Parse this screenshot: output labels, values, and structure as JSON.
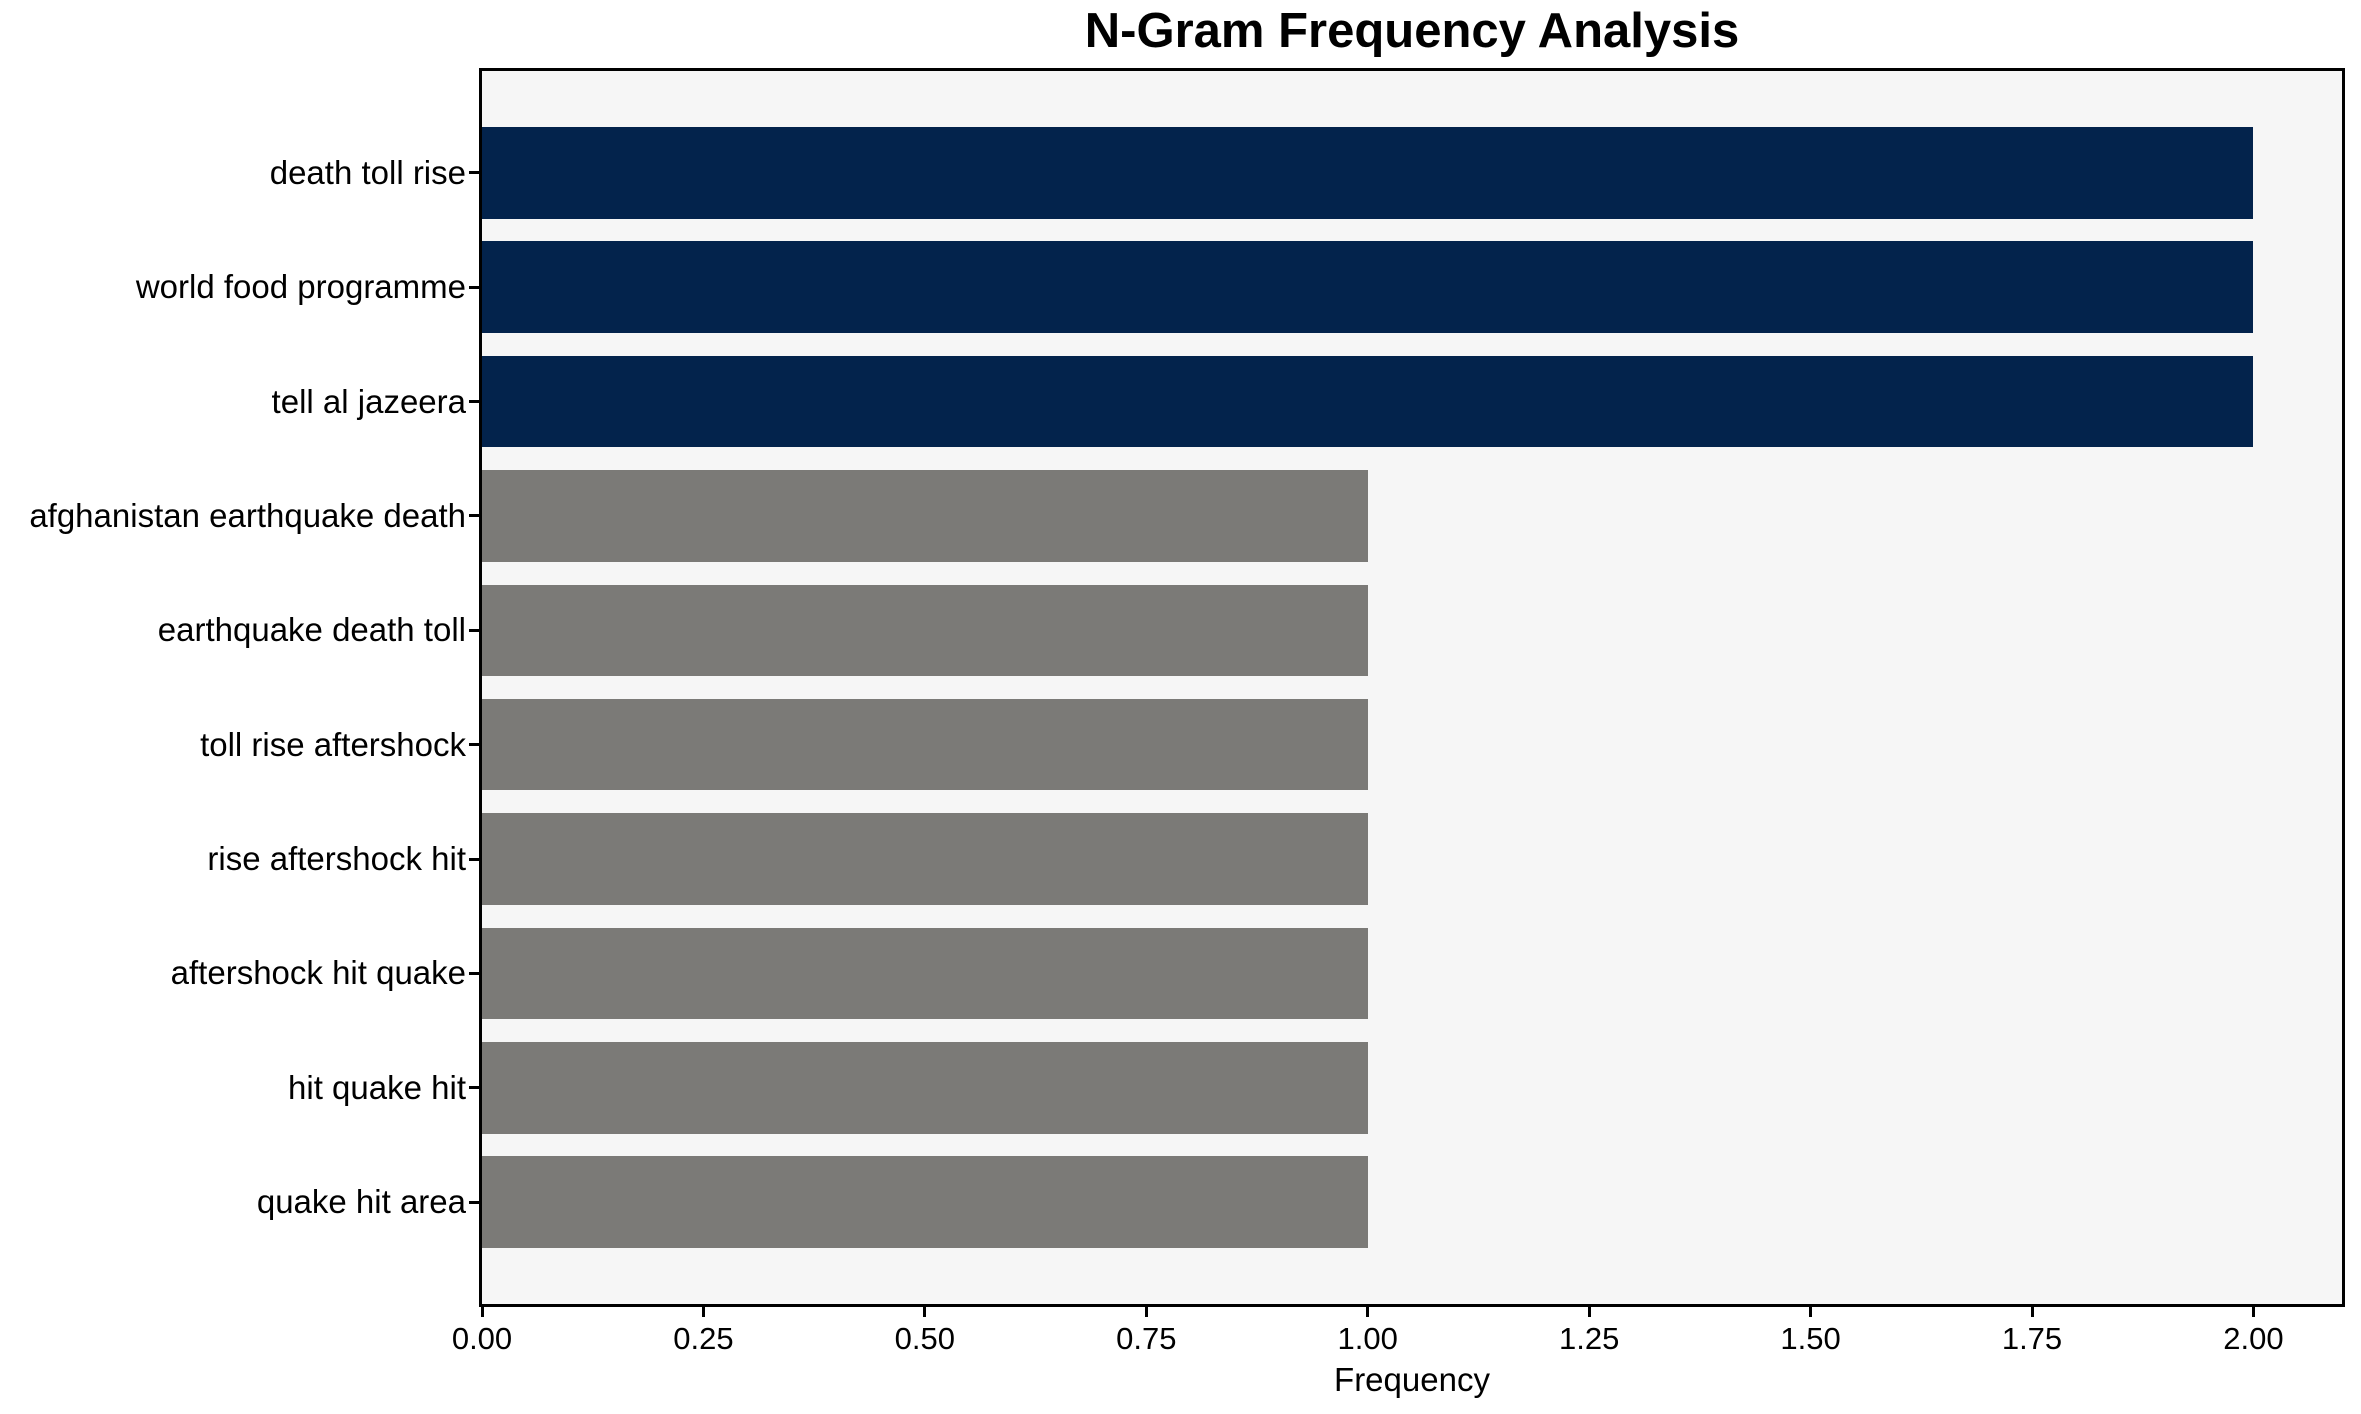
{
  "figure": {
    "background": "#ffffff",
    "plot_background": "#f6f6f6",
    "spine_color": "#000000",
    "text_color": "#000000"
  },
  "chart_data": {
    "type": "bar",
    "orientation": "horizontal",
    "title": "N-Gram Frequency Analysis",
    "xlabel": "Frequency",
    "ylabel": "",
    "categories": [
      "death toll rise",
      "world food programme",
      "tell al jazeera",
      "afghanistan earthquake death",
      "earthquake death toll",
      "toll rise aftershock",
      "rise aftershock hit",
      "aftershock hit quake",
      "hit quake hit",
      "quake hit area"
    ],
    "values": [
      2,
      2,
      2,
      1,
      1,
      1,
      1,
      1,
      1,
      1
    ],
    "bar_colors": [
      "#03234c",
      "#03234c",
      "#03234c",
      "#7b7a77",
      "#7b7a77",
      "#7b7a77",
      "#7b7a77",
      "#7b7a77",
      "#7b7a77",
      "#7b7a77"
    ],
    "colors": {
      "highlight_bar": "#03234c",
      "default_bar": "#7b7a77"
    },
    "xlim": [
      0,
      2.1
    ],
    "xtick_values": [
      0,
      0.25,
      0.5,
      0.75,
      1.0,
      1.25,
      1.5,
      1.75,
      2.0
    ],
    "xtick_labels": [
      "0.00",
      "0.25",
      "0.50",
      "0.75",
      "1.00",
      "1.25",
      "1.50",
      "1.75",
      "2.00"
    ],
    "grid": false,
    "legend": "none",
    "bar_fraction": 0.8,
    "axis_margin": 0.05
  }
}
